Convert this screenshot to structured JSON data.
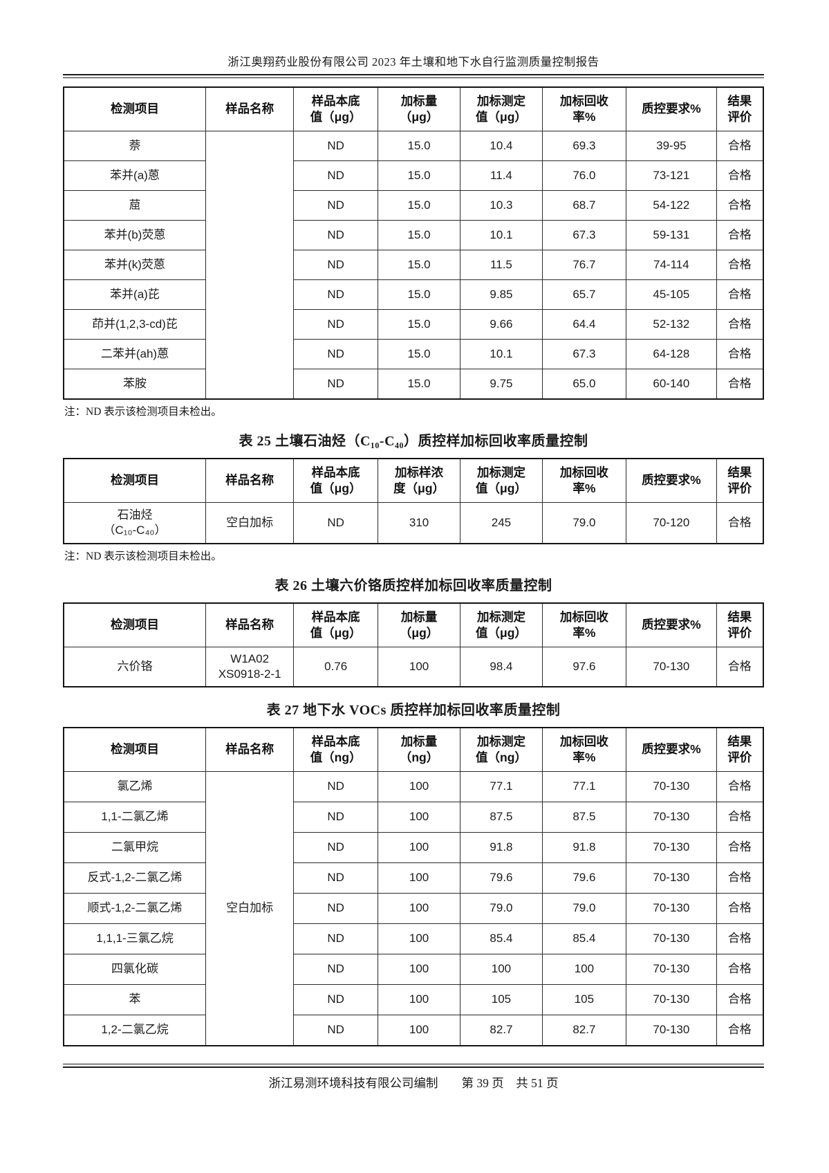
{
  "page": {
    "header_title": "浙江奥翔药业股份有限公司 2023 年土壤和地下水自行监测质量控制报告",
    "footer": {
      "publisher": "浙江易测环境科技有限公司编制",
      "page_info": "第 39 页　共 51 页"
    }
  },
  "tables": [
    {
      "id": "soil-pah-continued",
      "caption": "",
      "headers": [
        "检测项目",
        "样品名称",
        "样品本底\n值（μg）",
        "加标量\n（μg）",
        "加标测定\n值（μg）",
        "加标回收\n率%",
        "质控要求%",
        "结果\n评价"
      ],
      "sample_name": "",
      "rows": [
        [
          "萘",
          "ND",
          "15.0",
          "10.4",
          "69.3",
          "39-95",
          "合格"
        ],
        [
          "苯并(a)蒽",
          "ND",
          "15.0",
          "11.4",
          "76.0",
          "73-121",
          "合格"
        ],
        [
          "䓛",
          "ND",
          "15.0",
          "10.3",
          "68.7",
          "54-122",
          "合格"
        ],
        [
          "苯并(b)荧蒽",
          "ND",
          "15.0",
          "10.1",
          "67.3",
          "59-131",
          "合格"
        ],
        [
          "苯并(k)荧蒽",
          "ND",
          "15.0",
          "11.5",
          "76.7",
          "74-114",
          "合格"
        ],
        [
          "苯并(a)芘",
          "ND",
          "15.0",
          "9.85",
          "65.7",
          "45-105",
          "合格"
        ],
        [
          "茚并(1,2,3-cd)芘",
          "ND",
          "15.0",
          "9.66",
          "64.4",
          "52-132",
          "合格"
        ],
        [
          "二苯并(ah)蒽",
          "ND",
          "15.0",
          "10.1",
          "67.3",
          "64-128",
          "合格"
        ],
        [
          "苯胺",
          "ND",
          "15.0",
          "9.75",
          "65.0",
          "60-140",
          "合格"
        ]
      ],
      "note": "注：ND 表示该检测项目未检出。"
    },
    {
      "id": "soil-petroleum",
      "caption": "表 25 土壤石油烃（C₁₀-C₄₀）质控样加标回收率质量控制",
      "headers": [
        "检测项目",
        "样品名称",
        "样品本底\n值（μg）",
        "加标样浓\n度（μg）",
        "加标测定\n值（μg）",
        "加标回收\n率%",
        "质控要求%",
        "结果\n评价"
      ],
      "sample_name": "空白加标",
      "rows": [
        [
          "石油烃\n（C₁₀-C₄₀）",
          "ND",
          "310",
          "245",
          "79.0",
          "70-120",
          "合格"
        ]
      ],
      "note": "注：ND 表示该检测项目未检出。"
    },
    {
      "id": "soil-hexavalent-chromium",
      "caption": "表 26 土壤六价铬质控样加标回收率质量控制",
      "headers": [
        "检测项目",
        "样品名称",
        "样品本底\n值（μg）",
        "加标量\n（μg）",
        "加标测定\n值（μg）",
        "加标回收\n率%",
        "质控要求%",
        "结果\n评价"
      ],
      "sample_name": "W1A02\nXS0918-2-1",
      "rows": [
        [
          "六价铬",
          "0.76",
          "100",
          "98.4",
          "97.6",
          "70-130",
          "合格"
        ]
      ],
      "note": ""
    },
    {
      "id": "groundwater-vocs",
      "caption": "表 27 地下水 VOCs 质控样加标回收率质量控制",
      "headers": [
        "检测项目",
        "样品名称",
        "样品本底\n值（ng）",
        "加标量\n（ng）",
        "加标测定\n值（ng）",
        "加标回收\n率%",
        "质控要求%",
        "结果\n评价"
      ],
      "sample_name": "空白加标",
      "rows": [
        [
          "氯乙烯",
          "ND",
          "100",
          "77.1",
          "77.1",
          "70-130",
          "合格"
        ],
        [
          "1,1-二氯乙烯",
          "ND",
          "100",
          "87.5",
          "87.5",
          "70-130",
          "合格"
        ],
        [
          "二氯甲烷",
          "ND",
          "100",
          "91.8",
          "91.8",
          "70-130",
          "合格"
        ],
        [
          "反式-1,2-二氯乙烯",
          "ND",
          "100",
          "79.6",
          "79.6",
          "70-130",
          "合格"
        ],
        [
          "顺式-1,2-二氯乙烯",
          "ND",
          "100",
          "79.0",
          "79.0",
          "70-130",
          "合格"
        ],
        [
          "1,1,1-三氯乙烷",
          "ND",
          "100",
          "85.4",
          "85.4",
          "70-130",
          "合格"
        ],
        [
          "四氯化碳",
          "ND",
          "100",
          "100",
          "100",
          "70-130",
          "合格"
        ],
        [
          "苯",
          "ND",
          "100",
          "105",
          "105",
          "70-130",
          "合格"
        ],
        [
          "1,2-二氯乙烷",
          "ND",
          "100",
          "82.7",
          "82.7",
          "70-130",
          "合格"
        ]
      ],
      "note": ""
    }
  ]
}
